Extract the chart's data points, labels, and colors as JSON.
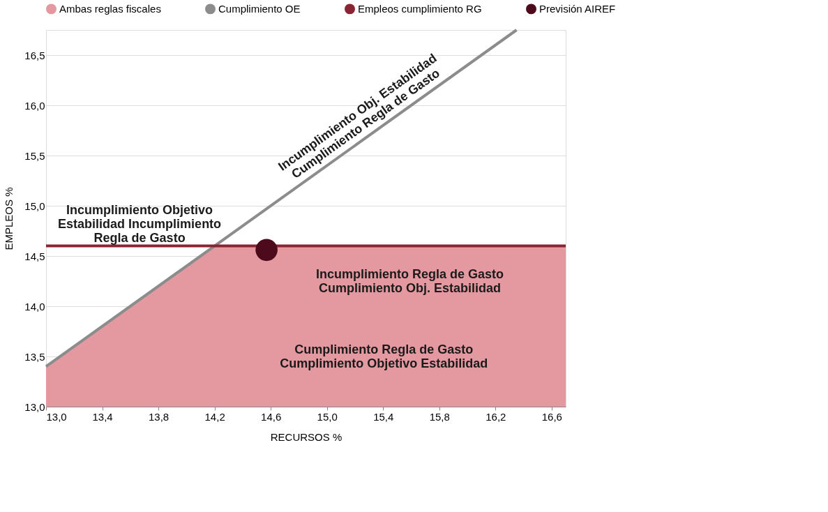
{
  "chart_data": {
    "type": "line",
    "xlabel": "RECURSOS %",
    "ylabel": "EMPLEOS %",
    "xlim": [
      13.0,
      16.7
    ],
    "xticks": [
      {
        "value": 13.0,
        "label": "13,0"
      },
      {
        "value": 13.4,
        "label": "13,4"
      },
      {
        "value": 13.8,
        "label": "13,8"
      },
      {
        "value": 14.2,
        "label": "14,2"
      },
      {
        "value": 14.6,
        "label": "14,6"
      },
      {
        "value": 15.0,
        "label": "15,0"
      },
      {
        "value": 15.4,
        "label": "15,4"
      },
      {
        "value": 15.8,
        "label": "15,8"
      },
      {
        "value": 16.2,
        "label": "16,2"
      },
      {
        "value": 16.6,
        "label": "16,6"
      }
    ],
    "ylim": [
      13.0,
      16.75
    ],
    "yticks": [
      {
        "value": 13.0,
        "label": "13,0"
      },
      {
        "value": 13.5,
        "label": "13,5"
      },
      {
        "value": 14.0,
        "label": "14,0"
      },
      {
        "value": 14.5,
        "label": "14,5"
      },
      {
        "value": 15.0,
        "label": "15,0"
      },
      {
        "value": 15.5,
        "label": "15,5"
      },
      {
        "value": 16.0,
        "label": "16,0"
      },
      {
        "value": 16.5,
        "label": "16,5"
      }
    ],
    "grid": "y",
    "legend": "top",
    "series": [
      {
        "name": "Ambas reglas fiscales",
        "type": "area",
        "color": "#e3999f",
        "x": [
          13.0,
          14.2,
          16.7
        ],
        "values": [
          13.4,
          14.6,
          14.6
        ]
      },
      {
        "name": "Cumplimiento OE",
        "color": "#8c8c8c",
        "x": [
          13.0,
          16.35
        ],
        "values": [
          13.4,
          16.75
        ]
      },
      {
        "name": "Empleos cumplimiento RG",
        "color": "#8b2332",
        "x": [
          13.0,
          16.7
        ],
        "values": [
          14.6,
          14.6
        ]
      },
      {
        "name": "Previsión AIREF",
        "type": "scatter",
        "marker": "circle",
        "color": "#4d0a1c",
        "x": [
          14.57
        ],
        "values": [
          14.56
        ]
      }
    ],
    "annotations": [
      "Incumplimiento Obj. Estabilidad\nCumplimiento Regla de Gasto",
      "Incumplimiento Objetivo\nEstabilidad Incumplimiento\nRegla de Gasto",
      "Incumplimiento Regla de Gasto\nCumplimiento Obj. Estabilidad",
      "Cumplimiento Regla de Gasto\nCumplimiento Objetivo Estabilidad"
    ]
  }
}
